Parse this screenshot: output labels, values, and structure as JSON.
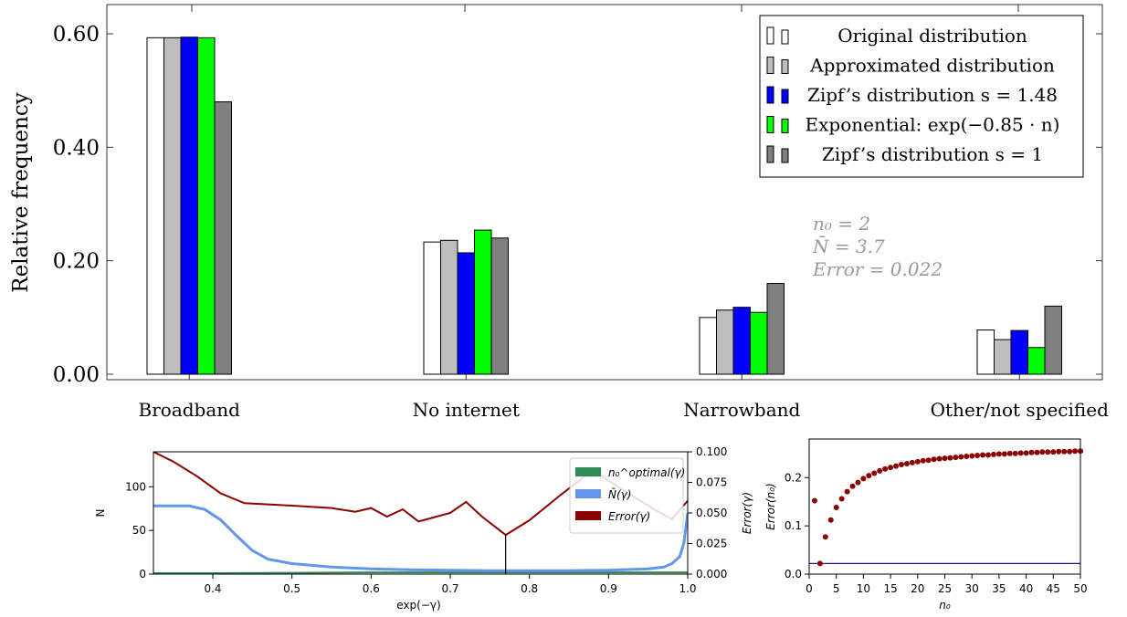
{
  "chart_data": [
    {
      "type": "bar",
      "title": "",
      "xlabel": "",
      "ylabel": "Relative frequency",
      "ylim": [
        0,
        0.65
      ],
      "yticks": [
        "0.00",
        "0.20",
        "0.40",
        "0.60"
      ],
      "categories": [
        "Broadband",
        "No internet",
        "Narrowband",
        "Other/not specified"
      ],
      "legend_position": "top-right",
      "series": [
        {
          "name": "Original distribution",
          "color": "#ffffff",
          "values": [
            0.593,
            0.233,
            0.1,
            0.078
          ]
        },
        {
          "name": "Approximated distribution",
          "color": "#bdbdbd",
          "values": [
            0.593,
            0.236,
            0.113,
            0.061
          ]
        },
        {
          "name": "Zipf’s distribution s = 1.48",
          "color": "#0000ff",
          "values": [
            0.594,
            0.214,
            0.118,
            0.077
          ]
        },
        {
          "name": "Exponential: exp(−0.85 · n)",
          "color": "#00ff00",
          "values": [
            0.593,
            0.254,
            0.109,
            0.047
          ]
        },
        {
          "name": "Zipf’s distribution s = 1",
          "color": "#808080",
          "values": [
            0.48,
            0.24,
            0.16,
            0.12
          ]
        }
      ],
      "annotations": [
        "n₀ = 2",
        "N̄ = 3.7",
        "Error = 0.022"
      ]
    },
    {
      "type": "line",
      "xlabel": "exp(−γ)",
      "ylabel": "N",
      "ylabel_right": "Error(γ)",
      "xlim": [
        0.325,
        1.0
      ],
      "ylim": [
        0,
        140
      ],
      "ylim_right": [
        0,
        0.1
      ],
      "xticks": [
        "0.4",
        "0.5",
        "0.6",
        "0.7",
        "0.8",
        "0.9",
        "1.0"
      ],
      "yticks": [
        "0",
        "50",
        "100"
      ],
      "yticks_right": [
        "0.000",
        "0.025",
        "0.050",
        "0.075",
        "0.100"
      ],
      "legend_position": "top-right",
      "marker_x": 0.77,
      "series": [
        {
          "name": "n₀^optimal(γ)",
          "color": "#2e8b57",
          "axis": "left",
          "x": [
            0.325,
            0.4,
            0.5,
            0.6,
            0.7,
            0.8,
            0.9,
            0.99,
            1.0
          ],
          "y": [
            1,
            1,
            1.5,
            2,
            2,
            2,
            2,
            2,
            2
          ]
        },
        {
          "name": "N̄(γ)",
          "color": "#6495ed",
          "axis": "left",
          "x": [
            0.325,
            0.37,
            0.39,
            0.41,
            0.43,
            0.45,
            0.47,
            0.5,
            0.55,
            0.6,
            0.65,
            0.7,
            0.75,
            0.8,
            0.85,
            0.9,
            0.95,
            0.97,
            0.98,
            0.99,
            0.995,
            1.0
          ],
          "y": [
            78,
            78,
            74,
            62,
            44,
            27,
            17,
            12,
            8,
            6,
            5,
            4.5,
            4,
            4,
            4,
            4.5,
            6,
            8,
            12,
            20,
            35,
            70
          ]
        },
        {
          "name": "Error(γ)",
          "color": "#8b0000",
          "axis": "right",
          "x": [
            0.325,
            0.35,
            0.38,
            0.41,
            0.44,
            0.5,
            0.55,
            0.58,
            0.6,
            0.62,
            0.64,
            0.66,
            0.7,
            0.72,
            0.74,
            0.77,
            0.8,
            0.84,
            0.88,
            0.92,
            0.96,
            0.98,
            1.0
          ],
          "y": [
            0.1,
            0.092,
            0.08,
            0.066,
            0.058,
            0.056,
            0.054,
            0.051,
            0.054,
            0.047,
            0.053,
            0.043,
            0.05,
            0.059,
            0.047,
            0.032,
            0.044,
            0.065,
            0.085,
            0.068,
            0.052,
            0.045,
            0.06
          ]
        }
      ]
    },
    {
      "type": "scatter",
      "xlabel": "n₀",
      "ylabel": "Error(n₀)",
      "xlim": [
        0,
        50
      ],
      "ylim": [
        0,
        0.28
      ],
      "xticks": [
        "0",
        "5",
        "10",
        "15",
        "20",
        "25",
        "30",
        "35",
        "40",
        "45",
        "50"
      ],
      "yticks": [
        "0.0",
        "0.1",
        "0.2"
      ],
      "hline": 0.022,
      "series": [
        {
          "name": "",
          "color": "#8b0000",
          "x": [
            1,
            2,
            3,
            4,
            5,
            6,
            7,
            8,
            9,
            10,
            11,
            12,
            13,
            14,
            15,
            16,
            17,
            18,
            19,
            20,
            21,
            22,
            23,
            24,
            25,
            26,
            27,
            28,
            29,
            30,
            31,
            32,
            33,
            34,
            35,
            36,
            37,
            38,
            39,
            40,
            41,
            42,
            43,
            44,
            45,
            46,
            47,
            48,
            49,
            50
          ],
          "y": [
            0.152,
            0.022,
            0.077,
            0.112,
            0.138,
            0.156,
            0.171,
            0.182,
            0.19,
            0.198,
            0.204,
            0.209,
            0.214,
            0.218,
            0.221,
            0.224,
            0.227,
            0.229,
            0.231,
            0.233,
            0.235,
            0.236,
            0.238,
            0.239,
            0.24,
            0.241,
            0.242,
            0.243,
            0.244,
            0.245,
            0.246,
            0.247,
            0.247,
            0.248,
            0.249,
            0.249,
            0.25,
            0.25,
            0.251,
            0.251,
            0.252,
            0.252,
            0.253,
            0.253,
            0.253,
            0.254,
            0.254,
            0.254,
            0.255,
            0.255
          ]
        }
      ]
    }
  ]
}
